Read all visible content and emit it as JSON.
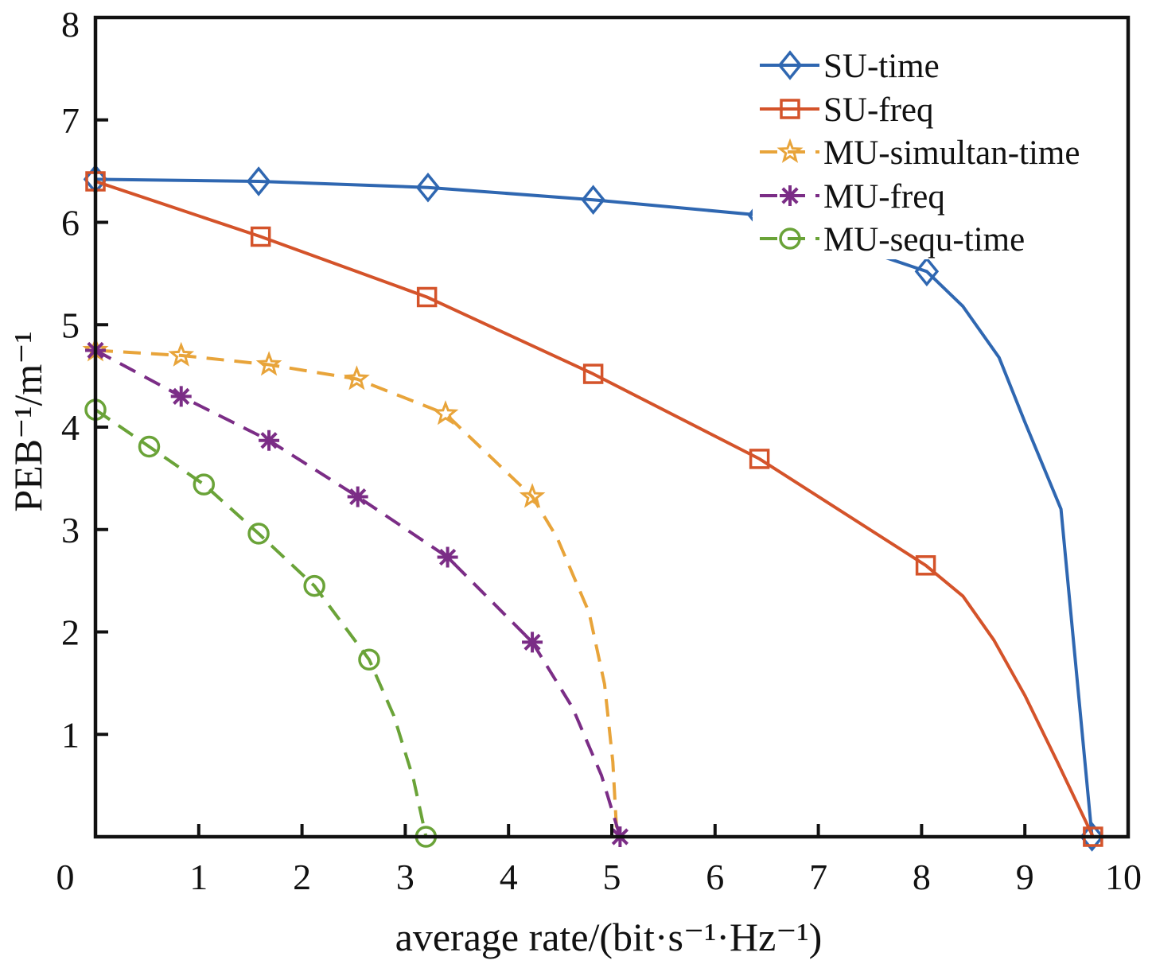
{
  "chart_data": {
    "type": "line",
    "xlabel": "average rate/(bit·s⁻¹·Hz⁻¹)",
    "ylabel": "PEB⁻¹/m⁻¹",
    "xlim": [
      0,
      10
    ],
    "ylim": [
      0,
      8
    ],
    "xticks": [
      0,
      1,
      2,
      3,
      4,
      5,
      6,
      7,
      8,
      9,
      10
    ],
    "yticks": [
      1,
      2,
      3,
      4,
      5,
      6,
      7,
      8
    ],
    "grid": false,
    "legend_position": "top-right",
    "series": [
      {
        "name": "SU-time",
        "color": "#2f67b1",
        "line_style": "solid",
        "marker": "diamond",
        "x": [
          0,
          1.58,
          3.22,
          4.82,
          6.43,
          8.05,
          8.4,
          8.75,
          9.0,
          9.35,
          9.65
        ],
        "y": [
          6.42,
          6.4,
          6.34,
          6.22,
          6.07,
          5.52,
          5.18,
          4.68,
          4.05,
          3.2,
          0
        ],
        "marker_indices": [
          0,
          1,
          2,
          3,
          4,
          5,
          10
        ]
      },
      {
        "name": "SU-freq",
        "color": "#d4532a",
        "line_style": "solid",
        "marker": "square",
        "x": [
          0,
          1.6,
          3.21,
          4.82,
          6.43,
          8.04,
          8.4,
          8.7,
          9.0,
          9.32,
          9.66
        ],
        "y": [
          6.4,
          5.86,
          5.27,
          4.52,
          3.69,
          2.65,
          2.35,
          1.92,
          1.38,
          0.72,
          0
        ],
        "marker_indices": [
          0,
          1,
          2,
          3,
          4,
          5,
          10
        ]
      },
      {
        "name": "MU-simultan-time",
        "color": "#e8a43a",
        "line_style": "dashed",
        "marker": "star",
        "x": [
          0,
          0.83,
          1.68,
          2.53,
          3.39,
          4.23,
          4.47,
          4.78,
          4.93,
          5.01,
          5.05
        ],
        "y": [
          4.75,
          4.7,
          4.61,
          4.47,
          4.13,
          3.32,
          2.92,
          2.19,
          1.49,
          0.73,
          0
        ],
        "marker_indices": [
          0,
          1,
          2,
          3,
          4,
          5
        ]
      },
      {
        "name": "MU-freq",
        "color": "#7b2d86",
        "line_style": "dashed",
        "marker": "asterisk",
        "x": [
          0,
          0.83,
          1.68,
          2.54,
          3.41,
          4.23,
          4.62,
          4.9,
          5.08
        ],
        "y": [
          4.75,
          4.3,
          3.87,
          3.32,
          2.73,
          1.9,
          1.26,
          0.6,
          0
        ],
        "marker_indices": [
          0,
          1,
          2,
          3,
          4,
          5,
          8
        ]
      },
      {
        "name": "MU-sequ-time",
        "color": "#6aa338",
        "line_style": "dashed",
        "marker": "circle",
        "x": [
          0,
          0.52,
          1.05,
          1.58,
          2.12,
          2.65,
          2.89,
          3.08,
          3.2
        ],
        "y": [
          4.17,
          3.81,
          3.44,
          2.96,
          2.45,
          1.73,
          1.18,
          0.56,
          0
        ],
        "marker_indices": [
          0,
          1,
          2,
          3,
          4,
          5,
          8
        ]
      }
    ]
  }
}
